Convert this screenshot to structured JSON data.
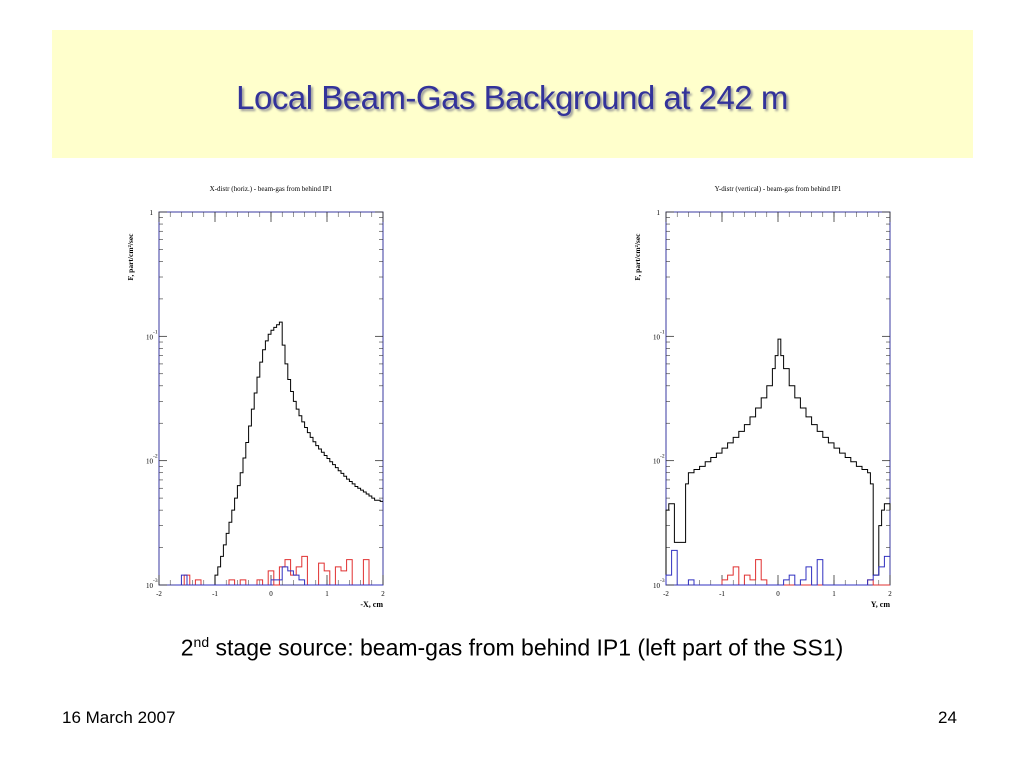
{
  "slide": {
    "title": "Local Beam-Gas Background at 242 m",
    "caption_prefix": "2",
    "caption_sup": "nd",
    "caption_rest": " stage source: beam-gas from behind IP1 (left part of the SS1)",
    "footer_date": "16 March 2007",
    "page_number": "24"
  },
  "colors": {
    "title_band": "#ffffcc",
    "title_text": "#33339a",
    "total": "#000000",
    "red_series": "#e03030",
    "blue_series": "#3030c0",
    "frame": "#3a3aa0"
  },
  "chart_data": [
    {
      "type": "line",
      "step": true,
      "title": "X-distr (horiz.) - beam-gas from behind IP1",
      "xlabel": "-X, cm",
      "ylabel": "F, part/cm²/sec",
      "xlim": [
        -2,
        2
      ],
      "ylim": [
        0.001,
        1
      ],
      "yscale": "log",
      "xticks": [
        "-2",
        "-1",
        "0",
        "1",
        "2"
      ],
      "yticks": [
        {
          "base": "1",
          "exp": "",
          "value": 1
        },
        {
          "base": "10",
          "exp": "-1",
          "value": 0.1
        },
        {
          "base": "10",
          "exp": "-2",
          "value": 0.01
        },
        {
          "base": "10",
          "exp": "-3",
          "value": 0.001
        }
      ],
      "series": [
        {
          "x": [
            -1.1,
            -1.0,
            -0.95,
            -0.9,
            -0.85,
            -0.8,
            -0.75,
            -0.7,
            -0.65,
            -0.6,
            -0.55,
            -0.5,
            -0.45,
            -0.4,
            -0.35,
            -0.3,
            -0.25,
            -0.2,
            -0.15,
            -0.1,
            -0.05,
            0.0,
            0.05,
            0.1,
            0.15,
            0.2,
            0.25,
            0.3,
            0.35,
            0.4,
            0.45,
            0.5,
            0.55,
            0.6,
            0.65,
            0.7,
            0.75,
            0.8,
            0.85,
            0.9,
            0.95,
            1.0,
            1.05,
            1.1,
            1.15,
            1.2,
            1.25,
            1.3,
            1.35,
            1.4,
            1.45,
            1.5,
            1.55,
            1.6,
            1.65,
            1.7,
            1.75,
            1.8,
            1.85,
            1.9,
            1.95,
            2.0
          ],
          "values": [
            0.001,
            0.0012,
            0.0014,
            0.0017,
            0.0021,
            0.0026,
            0.0032,
            0.004,
            0.005,
            0.0063,
            0.008,
            0.0105,
            0.014,
            0.019,
            0.026,
            0.035,
            0.047,
            0.062,
            0.078,
            0.092,
            0.104,
            0.112,
            0.118,
            0.124,
            0.13,
            0.085,
            0.06,
            0.045,
            0.036,
            0.03,
            0.026,
            0.023,
            0.0205,
            0.0185,
            0.0168,
            0.0154,
            0.0142,
            0.0132,
            0.0124,
            0.0117,
            0.011,
            0.0104,
            0.0098,
            0.0093,
            0.0088,
            0.0083,
            0.0079,
            0.0075,
            0.0071,
            0.0068,
            0.0065,
            0.0062,
            0.006,
            0.0058,
            0.0056,
            0.0054,
            0.0052,
            0.005,
            0.0048,
            0.0048,
            0.0047,
            0.0047
          ]
        },
        {
          "x": [
            -1.55,
            -1.45,
            -1.35,
            -1.25,
            -1.15,
            -1.05,
            -0.95,
            -0.85,
            -0.75,
            -0.65,
            -0.55,
            -0.45,
            -0.35,
            -0.25,
            -0.15,
            -0.05,
            0.05,
            0.15,
            0.25,
            0.35,
            0.45,
            0.55,
            0.65,
            0.75,
            0.85,
            0.95,
            1.05,
            1.15,
            1.25,
            1.35,
            1.45,
            1.55,
            1.65,
            1.75,
            1.85,
            1.95
          ],
          "values": [
            0.0012,
            0.001,
            0.0011,
            0.001,
            0.001,
            0.001,
            0.001,
            0.001,
            0.0011,
            0.001,
            0.0011,
            0.001,
            0.001,
            0.0011,
            0.001,
            0.0013,
            0.001,
            0.0014,
            0.0016,
            0.0012,
            0.0014,
            0.0017,
            0.001,
            0.001,
            0.0015,
            0.0013,
            0.001,
            0.0014,
            0.0013,
            0.0016,
            0.001,
            0.001,
            0.0016,
            0.001,
            0.001,
            0.001
          ]
        },
        {
          "x": [
            -1.7,
            -1.6,
            -1.5,
            -1.4,
            -1.3,
            -1.2,
            -1.1,
            -1.0,
            -0.9,
            -0.8,
            -0.7,
            -0.6,
            -0.5,
            -0.4,
            -0.3,
            -0.2,
            -0.1,
            0.0,
            0.1,
            0.2,
            0.3,
            0.4,
            0.5,
            0.6,
            0.7,
            0.8,
            0.9,
            1.0,
            1.1,
            1.2,
            1.3,
            1.4,
            1.5,
            1.6,
            1.7,
            1.8,
            1.9
          ],
          "values": [
            0.001,
            0.0012,
            0.001,
            0.001,
            0.001,
            0.001,
            0.001,
            0.001,
            0.001,
            0.001,
            0.001,
            0.001,
            0.001,
            0.001,
            0.001,
            0.001,
            0.001,
            0.0011,
            0.0011,
            0.0014,
            0.0013,
            0.0012,
            0.0011,
            0.001,
            0.001,
            0.001,
            0.001,
            0.001,
            0.001,
            0.001,
            0.001,
            0.001,
            0.001,
            0.001,
            0.001,
            0.001,
            0.001
          ]
        }
      ]
    },
    {
      "type": "line",
      "step": true,
      "title": "Y-distr (vertical) - beam-gas from behind IP1",
      "xlabel": "Y, cm",
      "ylabel": "F, part/cm²/sec",
      "xlim": [
        -2,
        2
      ],
      "ylim": [
        0.001,
        1
      ],
      "yscale": "log",
      "xticks": [
        "-2",
        "-1",
        "0",
        "1",
        "2"
      ],
      "yticks": [
        {
          "base": "1",
          "exp": "",
          "value": 1
        },
        {
          "base": "10",
          "exp": "-1",
          "value": 0.1
        },
        {
          "base": "10",
          "exp": "-2",
          "value": 0.01
        },
        {
          "base": "10",
          "exp": "-3",
          "value": 0.001
        }
      ],
      "series": [
        {
          "x": [
            -2.0,
            -1.95,
            -1.9,
            -1.85,
            -1.8,
            -1.75,
            -1.7,
            -1.65,
            -1.6,
            -1.5,
            -1.4,
            -1.3,
            -1.2,
            -1.1,
            -1.0,
            -0.9,
            -0.8,
            -0.7,
            -0.6,
            -0.5,
            -0.4,
            -0.3,
            -0.2,
            -0.1,
            -0.05,
            0.0,
            0.05,
            0.1,
            0.2,
            0.3,
            0.4,
            0.5,
            0.6,
            0.7,
            0.8,
            0.9,
            1.0,
            1.1,
            1.2,
            1.3,
            1.4,
            1.5,
            1.6,
            1.65,
            1.7,
            1.75,
            1.8,
            1.85,
            1.9,
            1.95,
            2.0
          ],
          "values": [
            0.004,
            0.0045,
            0.0045,
            0.0022,
            0.0022,
            0.0022,
            0.0022,
            0.0065,
            0.008,
            0.0085,
            0.009,
            0.0098,
            0.0106,
            0.0115,
            0.0126,
            0.0139,
            0.0154,
            0.0172,
            0.0195,
            0.0225,
            0.0265,
            0.032,
            0.04,
            0.055,
            0.07,
            0.095,
            0.07,
            0.055,
            0.04,
            0.032,
            0.0265,
            0.0225,
            0.0195,
            0.0172,
            0.0154,
            0.0139,
            0.0126,
            0.0115,
            0.0106,
            0.0098,
            0.009,
            0.0085,
            0.008,
            0.0065,
            0.0012,
            0.0012,
            0.003,
            0.004,
            0.0045,
            0.0045,
            0.004
          ]
        },
        {
          "x": [
            -1.2,
            -1.1,
            -1.0,
            -0.9,
            -0.8,
            -0.7,
            -0.6,
            -0.5,
            -0.4,
            -0.3,
            -0.2,
            -0.1,
            0.0,
            0.1,
            0.2,
            0.3,
            0.4,
            0.5,
            0.6,
            0.7,
            0.8,
            0.9,
            1.0,
            1.1,
            1.2,
            1.3,
            1.4,
            1.5,
            1.6,
            1.7,
            1.8,
            1.9
          ],
          "values": [
            0.001,
            0.001,
            0.0011,
            0.0012,
            0.0014,
            0.001,
            0.0012,
            0.0011,
            0.0016,
            0.0011,
            0.001,
            0.001,
            0.001,
            0.001,
            0.001,
            0.001,
            0.001,
            0.001,
            0.001,
            0.001,
            0.001,
            0.001,
            0.001,
            0.001,
            0.001,
            0.001,
            0.001,
            0.001,
            0.0011,
            0.001,
            0.001,
            0.001
          ]
        },
        {
          "x": [
            -2.0,
            -1.9,
            -1.8,
            -1.7,
            -1.6,
            -1.5,
            -1.4,
            -1.3,
            -1.2,
            -1.1,
            -1.0,
            -0.9,
            -0.8,
            -0.7,
            -0.6,
            -0.5,
            -0.4,
            -0.3,
            -0.2,
            -0.1,
            0.0,
            0.1,
            0.2,
            0.3,
            0.4,
            0.5,
            0.6,
            0.7,
            0.8,
            0.9,
            1.0,
            1.1,
            1.2,
            1.3,
            1.4,
            1.5,
            1.6,
            1.7,
            1.8,
            1.9
          ],
          "values": [
            0.0012,
            0.0019,
            0.001,
            0.001,
            0.0011,
            0.001,
            0.001,
            0.001,
            0.001,
            0.001,
            0.001,
            0.001,
            0.001,
            0.001,
            0.001,
            0.001,
            0.001,
            0.001,
            0.001,
            0.001,
            0.001,
            0.0011,
            0.0012,
            0.001,
            0.0011,
            0.0014,
            0.001,
            0.0016,
            0.001,
            0.001,
            0.001,
            0.001,
            0.001,
            0.001,
            0.001,
            0.001,
            0.0011,
            0.0012,
            0.0014,
            0.0017
          ]
        }
      ]
    }
  ]
}
